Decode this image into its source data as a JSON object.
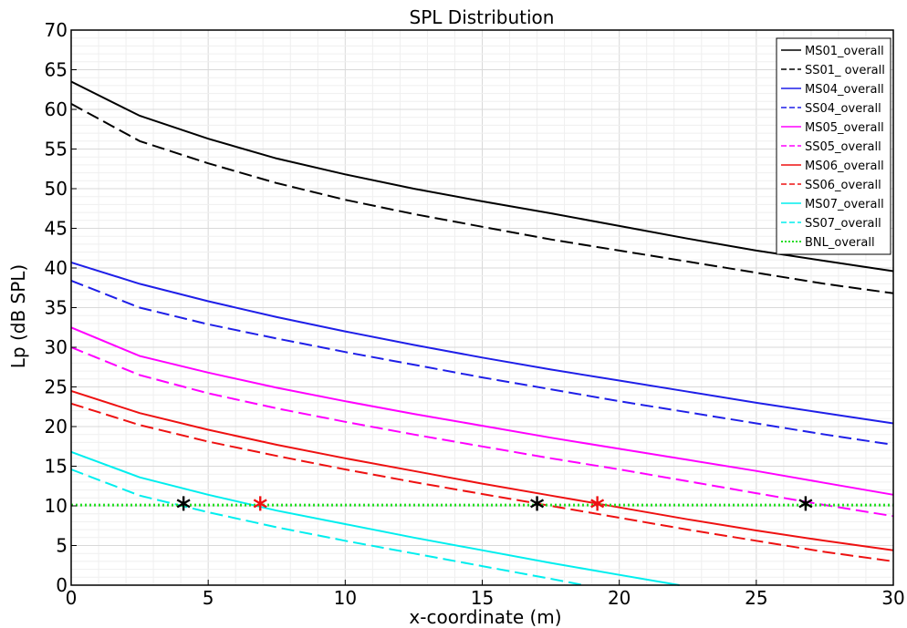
{
  "chart_data": {
    "type": "line",
    "title": "SPL Distribution",
    "xlabel": "x-coordinate (m)",
    "ylabel": "Lp (dB SPL)",
    "xlim": [
      0,
      30
    ],
    "ylim": [
      0,
      70
    ],
    "xticks": [
      0,
      5,
      10,
      15,
      20,
      25,
      30
    ],
    "yticks": [
      0,
      5,
      10,
      15,
      20,
      25,
      30,
      35,
      40,
      45,
      50,
      55,
      60,
      65,
      70
    ],
    "grid": true,
    "legend_position": "top-right",
    "series": [
      {
        "name": "MS01_overall",
        "color": "#000000",
        "dash": "solid",
        "x": [
          0,
          2.5,
          5,
          7.5,
          10,
          12.5,
          15,
          17.5,
          20,
          22.5,
          25,
          27.5,
          30
        ],
        "y": [
          63.5,
          59.2,
          56.3,
          53.8,
          51.8,
          50.0,
          48.4,
          46.9,
          45.3,
          43.7,
          42.2,
          40.9,
          39.6
        ]
      },
      {
        "name": "SS01_ overall",
        "color": "#000000",
        "dash": "dashed",
        "x": [
          0,
          2.5,
          5,
          7.5,
          10,
          12.5,
          15,
          17.5,
          20,
          22.5,
          25,
          27.5,
          30
        ],
        "y": [
          60.7,
          56.0,
          53.2,
          50.7,
          48.6,
          46.8,
          45.2,
          43.6,
          42.2,
          40.8,
          39.4,
          38.0,
          36.8
        ]
      },
      {
        "name": "MS04_overall",
        "color": "#1f1fe8",
        "dash": "solid",
        "x": [
          0,
          2.5,
          5,
          7.5,
          10,
          12.5,
          15,
          17.5,
          20,
          22.5,
          25,
          27.5,
          30
        ],
        "y": [
          40.7,
          38.0,
          35.8,
          33.8,
          32.0,
          30.3,
          28.7,
          27.2,
          25.8,
          24.4,
          23.0,
          21.7,
          20.4
        ]
      },
      {
        "name": "SS04_overall",
        "color": "#1f1fe8",
        "dash": "dashed",
        "x": [
          0,
          2.5,
          5,
          7.5,
          10,
          12.5,
          15,
          17.5,
          20,
          22.5,
          25,
          27.5,
          30
        ],
        "y": [
          38.4,
          35.0,
          32.9,
          31.1,
          29.4,
          27.8,
          26.2,
          24.7,
          23.2,
          21.8,
          20.4,
          19.0,
          17.7
        ]
      },
      {
        "name": "MS05_overall",
        "color": "#ff00ff",
        "dash": "solid",
        "x": [
          0,
          2.5,
          5,
          7.5,
          10,
          12.5,
          15,
          17.5,
          20,
          22.5,
          25,
          27.5,
          30
        ],
        "y": [
          32.5,
          28.9,
          26.8,
          24.9,
          23.2,
          21.6,
          20.1,
          18.6,
          17.2,
          15.8,
          14.4,
          12.9,
          11.4
        ]
      },
      {
        "name": "SS05_overall",
        "color": "#ff00ff",
        "dash": "dashed",
        "x": [
          0,
          2.5,
          5,
          7.5,
          10,
          12.5,
          15,
          17.5,
          20,
          22.5,
          25,
          27.5,
          30
        ],
        "y": [
          30.0,
          26.5,
          24.2,
          22.3,
          20.6,
          19.0,
          17.5,
          16.0,
          14.6,
          13.1,
          11.6,
          10.1,
          8.7
        ]
      },
      {
        "name": "MS06_overall",
        "color": "#ee1111",
        "dash": "solid",
        "x": [
          0,
          2.5,
          5,
          7.5,
          10,
          12.5,
          15,
          17.5,
          20,
          22.5,
          25,
          27.5,
          30
        ],
        "y": [
          24.5,
          21.7,
          19.6,
          17.7,
          16.0,
          14.4,
          12.8,
          11.3,
          9.8,
          8.3,
          6.9,
          5.6,
          4.4
        ]
      },
      {
        "name": "SS06_overall",
        "color": "#ee1111",
        "dash": "dashed",
        "x": [
          0,
          2.5,
          5,
          7.5,
          10,
          12.5,
          15,
          17.5,
          20,
          22.5,
          25,
          27.5,
          30
        ],
        "y": [
          22.9,
          20.2,
          18.1,
          16.3,
          14.6,
          13.0,
          11.5,
          10.0,
          8.5,
          7.0,
          5.6,
          4.2,
          3.0
        ]
      },
      {
        "name": "MS07_overall",
        "color": "#00eeee",
        "dash": "solid",
        "x": [
          0,
          2.5,
          5,
          7.5,
          10,
          12.5,
          15,
          17.5,
          20,
          22.2
        ],
        "y": [
          16.8,
          13.6,
          11.4,
          9.4,
          7.7,
          6.0,
          4.4,
          2.8,
          1.3,
          0.0
        ]
      },
      {
        "name": "SS07_overall",
        "color": "#00eeee",
        "dash": "dashed",
        "x": [
          0,
          2.5,
          5,
          7.5,
          10,
          12.5,
          15,
          17.5,
          18.7
        ],
        "y": [
          14.6,
          11.3,
          9.2,
          7.3,
          5.6,
          4.0,
          2.4,
          0.8,
          0.0
        ]
      },
      {
        "name": "BNL_overall",
        "color": "#22dd22",
        "dash": "dotted",
        "x": [
          0,
          30
        ],
        "y": [
          10.1,
          10.1
        ]
      }
    ],
    "markers": [
      {
        "x": 4.1,
        "y": 10.3,
        "symbol": "*",
        "color": "#000000"
      },
      {
        "x": 6.9,
        "y": 10.3,
        "symbol": "*",
        "color": "#ee1111"
      },
      {
        "x": 17.0,
        "y": 10.3,
        "symbol": "*",
        "color": "#000000"
      },
      {
        "x": 19.2,
        "y": 10.3,
        "symbol": "*",
        "color": "#ee1111"
      },
      {
        "x": 26.8,
        "y": 10.3,
        "symbol": "*",
        "color": "#000000"
      }
    ]
  }
}
